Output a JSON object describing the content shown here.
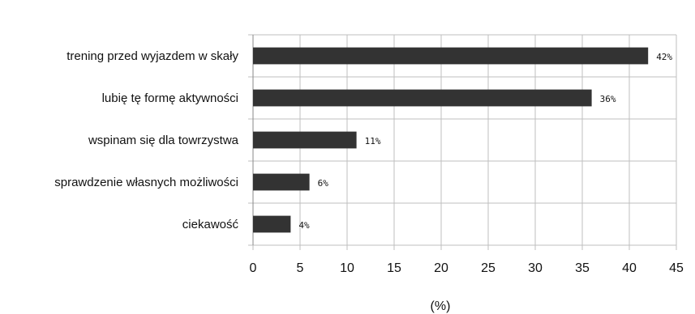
{
  "chart_data": {
    "type": "bar",
    "orientation": "horizontal",
    "categories": [
      "trening przed wyjazdem w skały",
      "lubię tę formę aktywności",
      "wspinam się dla towrzystwa",
      "sprawdzenie własnych możliwości",
      "ciekawość"
    ],
    "values": [
      42,
      36,
      11,
      6,
      4
    ],
    "data_labels": [
      "42%",
      "36%",
      "11%",
      "6%",
      "4%"
    ],
    "xlim": [
      0,
      45
    ],
    "x_ticks": [
      "0",
      "5",
      "10",
      "15",
      "20",
      "25",
      "30",
      "35",
      "40",
      "45"
    ],
    "xlabel": "(%)",
    "grid": "vertical",
    "bar_color": "#333333",
    "grid_color": "#bfbfbf"
  }
}
